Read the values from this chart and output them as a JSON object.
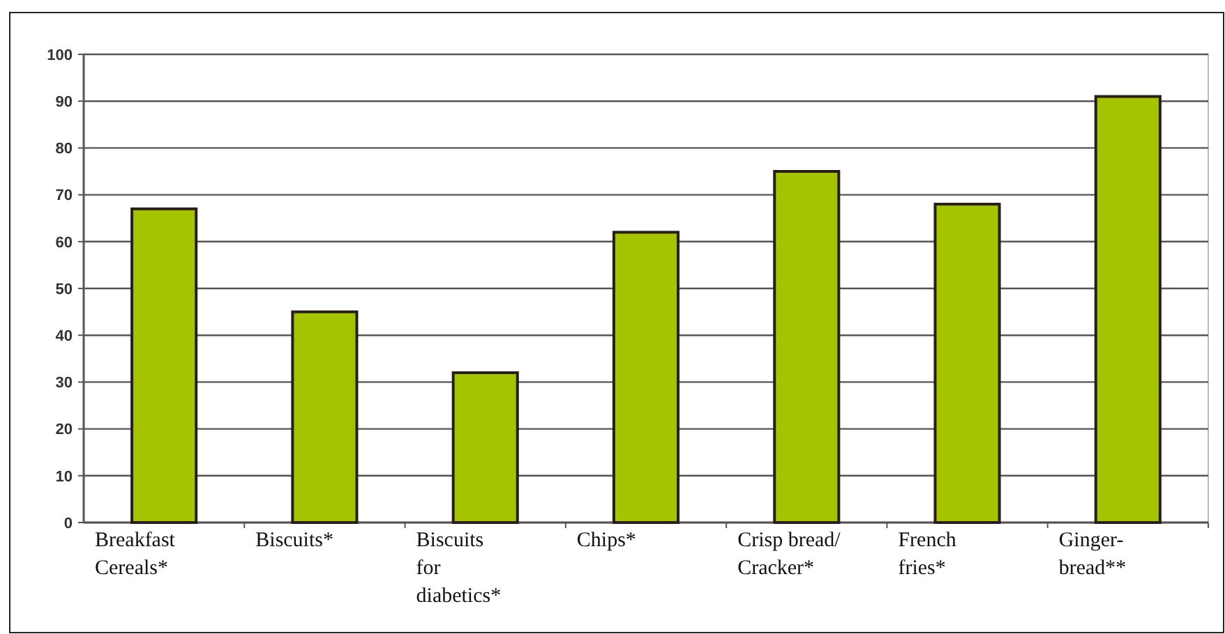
{
  "chart_data": {
    "type": "bar",
    "categories": [
      "Breakfast\nCereals*",
      "Biscuits*",
      "Biscuits\nfor\ndiabetics*",
      "Chips*",
      "Crisp bread/\nCracker*",
      "French\nfries*",
      "Ginger-\nbread**"
    ],
    "values": [
      67,
      45,
      32,
      62,
      75,
      68,
      91
    ],
    "color": "#a5c400",
    "ylim": [
      0,
      100
    ],
    "yticks": [
      0,
      10,
      20,
      30,
      40,
      50,
      60,
      70,
      80,
      90,
      100
    ],
    "grid": "y"
  }
}
